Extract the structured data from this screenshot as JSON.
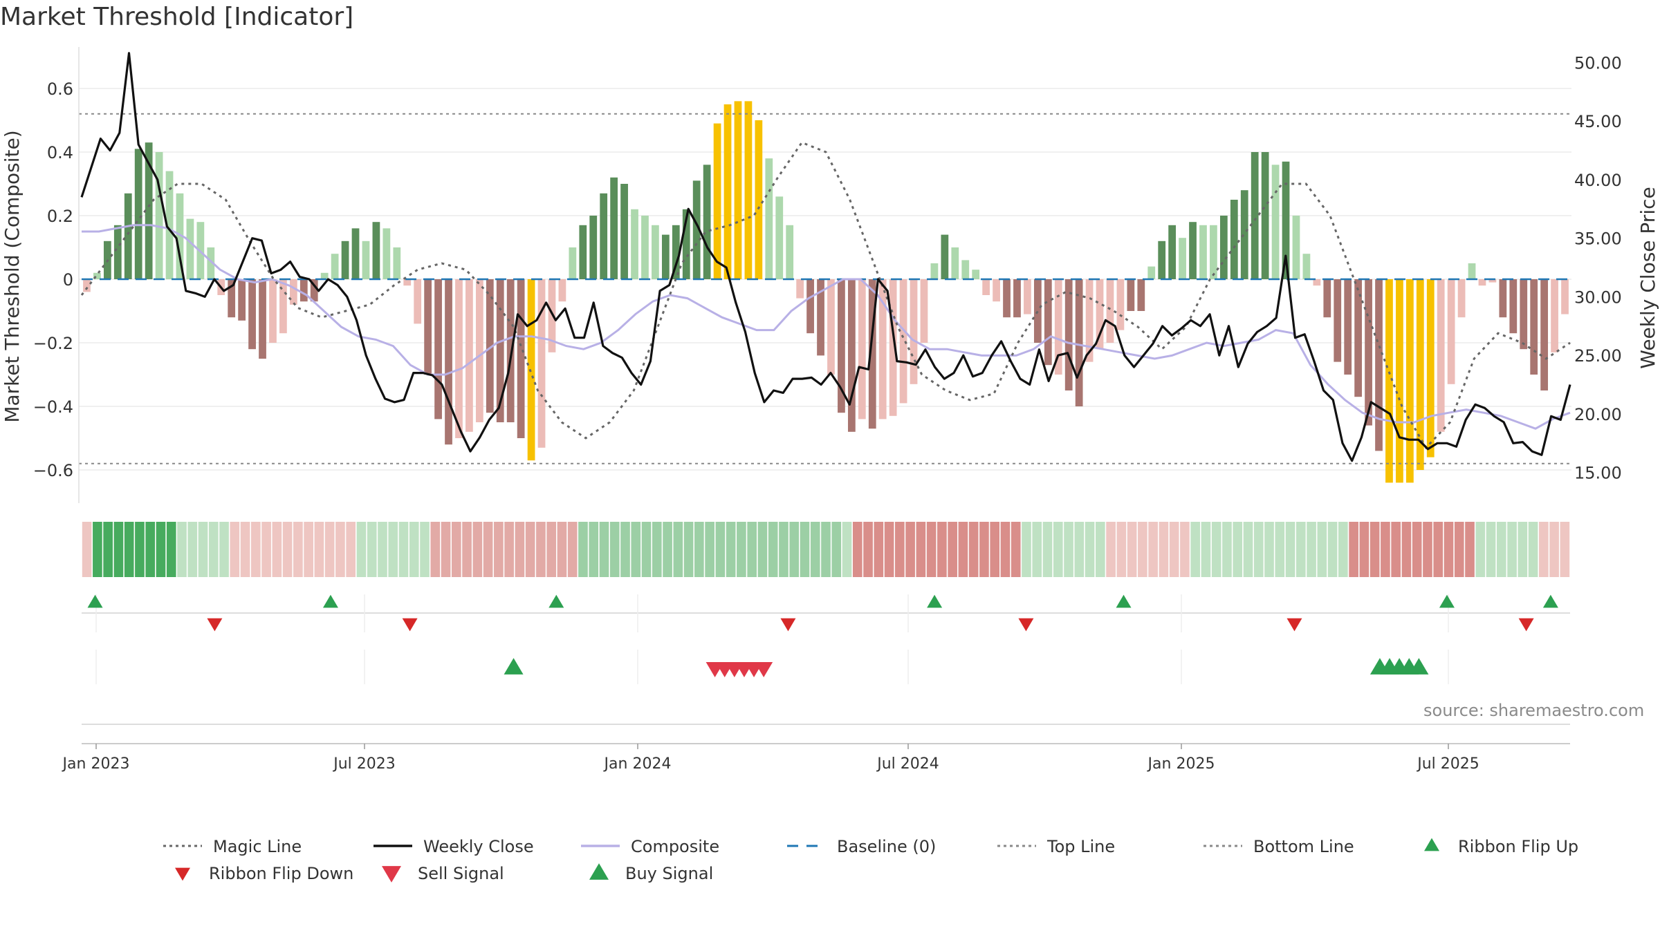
{
  "title": "Market Threshold [Indicator]",
  "source": "source: sharemaestro.com",
  "colors": {
    "bull_strong": "#5a8e5a",
    "bull_light": "#add8ad",
    "bear_strong": "#a87570",
    "bear_light": "#ecbcb7",
    "extreme": "#f7c100",
    "magic": "#666666",
    "close": "#111111",
    "composite": "#b8b0e6",
    "baseline": "#1f77b4",
    "threshold": "#888888",
    "flip_up": "#2ca050",
    "flip_down": "#d62828",
    "signal_up": "#2ca050",
    "signal_down": "#e03848"
  },
  "chart_data": {
    "type": "bar",
    "weeks": 122,
    "x_ticks": [
      {
        "label": "Jan 2023",
        "week": 1
      },
      {
        "label": "Jul 2023",
        "week": 23
      },
      {
        "label": "Jan 2024",
        "week": 45
      },
      {
        "label": "Jul 2024",
        "week": 67
      },
      {
        "label": "Jan 2025",
        "week": 89
      },
      {
        "label": "Jul 2025",
        "week": 111
      }
    ],
    "ylabel_left": "Market Threshold (Composite)",
    "ylabel_right": "Weekly Close Price",
    "ylim_left": [
      -0.7,
      0.7
    ],
    "ylim_right": [
      12.5,
      50.5
    ],
    "yticks_left": [
      {
        "label": "0.6",
        "value": 0.6
      },
      {
        "label": "0.4",
        "value": 0.4
      },
      {
        "label": "0.2",
        "value": 0.2
      },
      {
        "label": "0",
        "value": 0
      },
      {
        "label": "−0.2",
        "value": -0.2
      },
      {
        "label": "−0.4",
        "value": -0.4
      },
      {
        "label": "−0.6",
        "value": -0.6
      }
    ],
    "yticks_right": [
      {
        "label": "50.00",
        "value": 50
      },
      {
        "label": "45.00",
        "value": 45
      },
      {
        "label": "40.00",
        "value": 40
      },
      {
        "label": "35.00",
        "value": 35
      },
      {
        "label": "30.00",
        "value": 30
      },
      {
        "label": "25.00",
        "value": 25
      },
      {
        "label": "20.00",
        "value": 20
      },
      {
        "label": "15.00",
        "value": 15
      }
    ],
    "top_line": 0.52,
    "bottom_line": -0.58,
    "bar_states_note": "s=strong bull, l=light bull, b=strong bear, p=light bear, y=extreme",
    "bars": [
      {
        "v": -0.04,
        "s": "p"
      },
      {
        "v": 0.02,
        "s": "l"
      },
      {
        "v": 0.12,
        "s": "s"
      },
      {
        "v": 0.17,
        "s": "s"
      },
      {
        "v": 0.27,
        "s": "s"
      },
      {
        "v": 0.41,
        "s": "s"
      },
      {
        "v": 0.43,
        "s": "s"
      },
      {
        "v": 0.4,
        "s": "l"
      },
      {
        "v": 0.34,
        "s": "l"
      },
      {
        "v": 0.27,
        "s": "l"
      },
      {
        "v": 0.19,
        "s": "l"
      },
      {
        "v": 0.18,
        "s": "l"
      },
      {
        "v": 0.1,
        "s": "l"
      },
      {
        "v": -0.05,
        "s": "p"
      },
      {
        "v": -0.12,
        "s": "b"
      },
      {
        "v": -0.13,
        "s": "b"
      },
      {
        "v": -0.22,
        "s": "b"
      },
      {
        "v": -0.25,
        "s": "b"
      },
      {
        "v": -0.2,
        "s": "p"
      },
      {
        "v": -0.17,
        "s": "p"
      },
      {
        "v": -0.08,
        "s": "p"
      },
      {
        "v": -0.07,
        "s": "b"
      },
      {
        "v": -0.07,
        "s": "b"
      },
      {
        "v": 0.02,
        "s": "l"
      },
      {
        "v": 0.08,
        "s": "l"
      },
      {
        "v": 0.12,
        "s": "s"
      },
      {
        "v": 0.16,
        "s": "s"
      },
      {
        "v": 0.12,
        "s": "l"
      },
      {
        "v": 0.18,
        "s": "s"
      },
      {
        "v": 0.16,
        "s": "l"
      },
      {
        "v": 0.1,
        "s": "l"
      },
      {
        "v": -0.02,
        "s": "p"
      },
      {
        "v": -0.14,
        "s": "p"
      },
      {
        "v": -0.3,
        "s": "b"
      },
      {
        "v": -0.44,
        "s": "b"
      },
      {
        "v": -0.52,
        "s": "b"
      },
      {
        "v": -0.5,
        "s": "p"
      },
      {
        "v": -0.48,
        "s": "p"
      },
      {
        "v": -0.45,
        "s": "p"
      },
      {
        "v": -0.42,
        "s": "b"
      },
      {
        "v": -0.45,
        "s": "b"
      },
      {
        "v": -0.45,
        "s": "b"
      },
      {
        "v": -0.5,
        "s": "b"
      },
      {
        "v": -0.57,
        "s": "y"
      },
      {
        "v": -0.53,
        "s": "p"
      },
      {
        "v": -0.23,
        "s": "p"
      },
      {
        "v": -0.07,
        "s": "p"
      },
      {
        "v": 0.1,
        "s": "l"
      },
      {
        "v": 0.17,
        "s": "s"
      },
      {
        "v": 0.2,
        "s": "s"
      },
      {
        "v": 0.27,
        "s": "s"
      },
      {
        "v": 0.32,
        "s": "s"
      },
      {
        "v": 0.3,
        "s": "s"
      },
      {
        "v": 0.22,
        "s": "l"
      },
      {
        "v": 0.2,
        "s": "l"
      },
      {
        "v": 0.17,
        "s": "l"
      },
      {
        "v": 0.14,
        "s": "s"
      },
      {
        "v": 0.17,
        "s": "s"
      },
      {
        "v": 0.22,
        "s": "s"
      },
      {
        "v": 0.31,
        "s": "s"
      },
      {
        "v": 0.36,
        "s": "s"
      },
      {
        "v": 0.49,
        "s": "y"
      },
      {
        "v": 0.55,
        "s": "y"
      },
      {
        "v": 0.56,
        "s": "y"
      },
      {
        "v": 0.56,
        "s": "y"
      },
      {
        "v": 0.5,
        "s": "y"
      },
      {
        "v": 0.38,
        "s": "l"
      },
      {
        "v": 0.26,
        "s": "l"
      },
      {
        "v": 0.17,
        "s": "l"
      },
      {
        "v": -0.06,
        "s": "p"
      },
      {
        "v": -0.17,
        "s": "b"
      },
      {
        "v": -0.24,
        "s": "b"
      },
      {
        "v": -0.3,
        "s": "p"
      },
      {
        "v": -0.42,
        "s": "b"
      },
      {
        "v": -0.48,
        "s": "b"
      },
      {
        "v": -0.44,
        "s": "p"
      },
      {
        "v": -0.47,
        "s": "b"
      },
      {
        "v": -0.44,
        "s": "p"
      },
      {
        "v": -0.43,
        "s": "p"
      },
      {
        "v": -0.39,
        "s": "p"
      },
      {
        "v": -0.33,
        "s": "p"
      },
      {
        "v": -0.2,
        "s": "p"
      },
      {
        "v": 0.05,
        "s": "l"
      },
      {
        "v": 0.14,
        "s": "s"
      },
      {
        "v": 0.1,
        "s": "l"
      },
      {
        "v": 0.06,
        "s": "l"
      },
      {
        "v": 0.03,
        "s": "l"
      },
      {
        "v": -0.05,
        "s": "p"
      },
      {
        "v": -0.07,
        "s": "p"
      },
      {
        "v": -0.12,
        "s": "b"
      },
      {
        "v": -0.12,
        "s": "b"
      },
      {
        "v": -0.11,
        "s": "p"
      },
      {
        "v": -0.2,
        "s": "b"
      },
      {
        "v": -0.27,
        "s": "b"
      },
      {
        "v": -0.3,
        "s": "p"
      },
      {
        "v": -0.35,
        "s": "b"
      },
      {
        "v": -0.4,
        "s": "b"
      },
      {
        "v": -0.26,
        "s": "p"
      },
      {
        "v": -0.22,
        "s": "p"
      },
      {
        "v": -0.2,
        "s": "p"
      },
      {
        "v": -0.16,
        "s": "p"
      },
      {
        "v": -0.1,
        "s": "b"
      },
      {
        "v": -0.1,
        "s": "b"
      },
      {
        "v": 0.04,
        "s": "l"
      },
      {
        "v": 0.12,
        "s": "s"
      },
      {
        "v": 0.17,
        "s": "s"
      },
      {
        "v": 0.13,
        "s": "l"
      },
      {
        "v": 0.18,
        "s": "s"
      },
      {
        "v": 0.17,
        "s": "l"
      },
      {
        "v": 0.17,
        "s": "l"
      },
      {
        "v": 0.2,
        "s": "s"
      },
      {
        "v": 0.25,
        "s": "s"
      },
      {
        "v": 0.28,
        "s": "s"
      },
      {
        "v": 0.4,
        "s": "s"
      },
      {
        "v": 0.4,
        "s": "s"
      },
      {
        "v": 0.36,
        "s": "l"
      },
      {
        "v": 0.37,
        "s": "s"
      }
    ],
    "bars_tail": [
      {
        "v": 0.2,
        "s": "l"
      },
      {
        "v": 0.08,
        "s": "l"
      },
      {
        "v": -0.02,
        "s": "p"
      },
      {
        "v": -0.12,
        "s": "b"
      },
      {
        "v": -0.26,
        "s": "b"
      },
      {
        "v": -0.3,
        "s": "b"
      },
      {
        "v": -0.37,
        "s": "b"
      },
      {
        "v": -0.46,
        "s": "b"
      },
      {
        "v": -0.54,
        "s": "b"
      },
      {
        "v": -0.64,
        "s": "y"
      },
      {
        "v": -0.64,
        "s": "y"
      },
      {
        "v": -0.64,
        "s": "y"
      },
      {
        "v": -0.6,
        "s": "y"
      },
      {
        "v": -0.56,
        "s": "y"
      },
      {
        "v": -0.48,
        "s": "p"
      },
      {
        "v": -0.33,
        "s": "p"
      },
      {
        "v": -0.12,
        "s": "p"
      },
      {
        "v": 0.05,
        "s": "l"
      },
      {
        "v": -0.02,
        "s": "p"
      },
      {
        "v": -0.01,
        "s": "p"
      },
      {
        "v": -0.12,
        "s": "b"
      },
      {
        "v": -0.17,
        "s": "b"
      },
      {
        "v": -0.22,
        "s": "b"
      },
      {
        "v": -0.3,
        "s": "b"
      },
      {
        "v": -0.35,
        "s": "b"
      },
      {
        "v": -0.23,
        "s": "p"
      },
      {
        "v": -0.11,
        "s": "p"
      }
    ],
    "weekly_close": [
      38.5,
      41,
      43.5,
      42.5,
      44,
      50.8,
      43,
      41.5,
      40,
      36,
      35,
      30.5,
      30.3,
      30,
      31.5,
      30.5,
      31,
      33,
      35,
      34.8,
      32,
      32.3,
      33,
      31.7,
      31.5,
      30.5,
      31.5,
      31,
      30,
      28,
      25,
      23,
      21.3,
      21,
      21.2,
      23.5,
      23.5,
      23.3,
      22.5,
      20.5,
      18.5,
      16.8,
      18,
      19.5,
      20.5,
      23.5,
      28.5,
      27.5,
      28,
      29.5,
      28,
      29,
      26.5,
      26.5,
      29.5,
      25.8,
      25.2,
      24.8,
      23.5,
      22.5,
      24.5,
      30.5,
      31,
      33.5,
      37.5,
      36,
      34.2,
      33,
      32.5,
      29.5,
      27,
      23.5,
      21,
      22,
      21.8,
      23,
      23,
      23.1,
      22.5,
      23.5,
      22.3,
      20.8,
      24,
      23.8,
      31.5,
      30.5,
      24.5,
      24.4,
      24.2,
      25.5,
      24,
      23,
      23.5,
      25,
      23.2,
      23.5,
      25,
      26.2,
      24.5,
      23,
      22.5,
      25.5,
      22.8,
      25,
      25.2,
      23.1,
      25,
      26,
      28,
      27.5,
      25,
      24,
      25,
      26,
      27.5,
      26.7,
      27.3,
      28,
      27.5,
      28.5,
      25,
      27.5,
      24,
      26,
      27,
      27.5,
      28.2,
      33.5,
      26.5,
      26.8,
      24.5,
      22,
      21.2,
      17.5,
      16,
      18,
      21,
      20.5,
      20,
      18,
      17.8,
      17.8,
      17,
      17.5,
      17.5,
      17.2,
      19.5,
      20.8,
      20.5,
      19.8,
      19.3,
      17.5,
      17.6,
      16.8,
      16.5,
      19.8,
      19.5,
      22.5
    ],
    "composite": [
      0.15,
      0.15,
      0.16,
      0.17,
      0.17,
      0.16,
      0.13,
      0.08,
      0.03,
      0.0,
      -0.01,
      0.0,
      -0.02,
      -0.05,
      -0.1,
      -0.15,
      -0.18,
      -0.19,
      -0.21,
      -0.27,
      -0.3,
      -0.3,
      -0.28,
      -0.24,
      -0.2,
      -0.18,
      -0.18,
      -0.19,
      -0.21,
      -0.22,
      -0.2,
      -0.16,
      -0.11,
      -0.07,
      -0.05,
      -0.06,
      -0.09,
      -0.12,
      -0.14,
      -0.16,
      -0.16,
      -0.1,
      -0.06,
      -0.03,
      0.0,
      0.0,
      -0.05,
      -0.13,
      -0.19,
      -0.22,
      -0.22,
      -0.23,
      -0.24,
      -0.24,
      -0.24,
      -0.22,
      -0.18,
      -0.2,
      -0.21,
      -0.22,
      -0.23,
      -0.24,
      -0.25,
      -0.24,
      -0.22,
      -0.2,
      -0.21,
      -0.2,
      -0.19,
      -0.16,
      -0.17,
      -0.27,
      -0.33,
      -0.38,
      -0.42,
      -0.44,
      -0.45,
      -0.45,
      -0.43,
      -0.42,
      -0.41,
      -0.42,
      -0.43,
      -0.45,
      -0.47,
      -0.44,
      -0.42
    ],
    "magic_line": [
      -0.05,
      0.05,
      0.15,
      0.25,
      0.3,
      0.3,
      0.25,
      0.12,
      0.0,
      -0.09,
      -0.12,
      -0.1,
      -0.08,
      -0.02,
      0.03,
      0.05,
      0.03,
      -0.05,
      -0.15,
      -0.35,
      -0.45,
      -0.5,
      -0.45,
      -0.35,
      -0.15,
      0.05,
      0.15,
      0.17,
      0.2,
      0.32,
      0.43,
      0.4,
      0.25,
      0.05,
      -0.15,
      -0.3,
      -0.35,
      -0.38,
      -0.36,
      -0.2,
      -0.08,
      -0.04,
      -0.06,
      -0.1,
      -0.15,
      -0.22,
      -0.15,
      0.0,
      0.1,
      0.2,
      0.3,
      0.3,
      0.2,
      0.0,
      -0.2,
      -0.4,
      -0.53,
      -0.45,
      -0.25,
      -0.17,
      -0.2,
      -0.25,
      -0.2
    ],
    "ribbon": [
      "p",
      "s",
      "s",
      "s",
      "s",
      "s",
      "s",
      "s",
      "s",
      "l",
      "l",
      "l",
      "l",
      "l",
      "p",
      "p",
      "p",
      "p",
      "p",
      "p",
      "p",
      "p",
      "p",
      "p",
      "p",
      "p",
      "l",
      "l",
      "l",
      "l",
      "l",
      "l",
      "l",
      "p",
      "p",
      "p",
      "p",
      "p",
      "p",
      "p",
      "p",
      "p",
      "p",
      "p",
      "p",
      "p",
      "p",
      "l",
      "l",
      "l",
      "l",
      "l",
      "l",
      "l",
      "l",
      "l",
      "l",
      "l",
      "l",
      "l",
      "l",
      "l",
      "l",
      "l",
      "l",
      "l",
      "l",
      "l",
      "l",
      "l",
      "l",
      "l",
      "l",
      "b",
      "b",
      "b",
      "b",
      "b",
      "b",
      "b",
      "b",
      "b",
      "b",
      "b",
      "b",
      "b",
      "b",
      "b",
      "b",
      "l",
      "l",
      "l",
      "l",
      "l",
      "l",
      "l",
      "l",
      "p",
      "p",
      "p",
      "p",
      "p",
      "p",
      "p",
      "p",
      "l",
      "l",
      "l",
      "l",
      "l",
      "l",
      "l",
      "l",
      "l",
      "l",
      "l",
      "l",
      "l",
      "l",
      "l",
      "b",
      "b",
      "b",
      "b",
      "b",
      "b",
      "b",
      "b",
      "b",
      "b",
      "b",
      "b",
      "l",
      "l",
      "l",
      "l",
      "l",
      "l",
      "p",
      "p",
      "p"
    ],
    "ribbon_flip_up_weeks": [
      0.2,
      19.5,
      38,
      69,
      84.5,
      111,
      119.5
    ],
    "ribbon_flip_down_weeks": [
      10,
      26,
      57,
      76.5,
      98.5,
      117.5
    ],
    "buy_signal_weeks": [
      34.5,
      105.5,
      106.3,
      107.1,
      107.9,
      108.7
    ],
    "sell_signal_weeks": [
      51,
      51.8,
      52.6,
      53.4,
      54.2,
      55
    ]
  },
  "legend": [
    {
      "label": "Magic Line",
      "kind": "dotted",
      "color": "#666666"
    },
    {
      "label": "Weekly Close",
      "kind": "solid",
      "color": "#111111"
    },
    {
      "label": "Composite",
      "kind": "solid",
      "color": "#b8b0e6"
    },
    {
      "label": "Baseline (0)",
      "kind": "dashed",
      "color": "#1f77b4"
    },
    {
      "label": "Top Line",
      "kind": "dotted",
      "color": "#888888"
    },
    {
      "label": "Bottom Line",
      "kind": "dotted",
      "color": "#888888"
    },
    {
      "label": "Ribbon Flip Up",
      "kind": "tri-up",
      "color": "#2ca050"
    },
    {
      "label": "Ribbon Flip Down",
      "kind": "tri-down",
      "color": "#d62828"
    },
    {
      "label": "Sell Signal",
      "kind": "tri-down-big",
      "color": "#e03848"
    },
    {
      "label": "Buy Signal",
      "kind": "tri-up-big",
      "color": "#2ca050"
    }
  ]
}
